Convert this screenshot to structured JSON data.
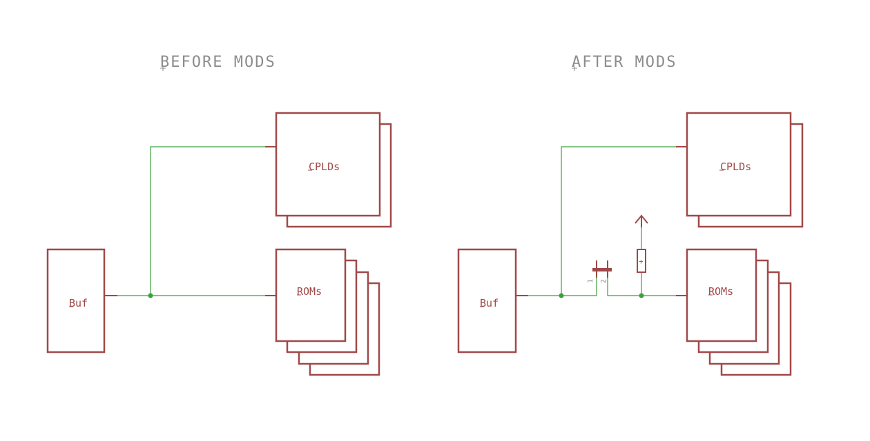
{
  "diagram": {
    "before": {
      "title": "BEFORE MODS",
      "buffer_label": "Buf",
      "cpld_label": "CPLDs",
      "rom_label": "ROMs"
    },
    "after": {
      "title": "AFTER MODS",
      "buffer_label": "Buf",
      "cpld_label": "CPLDs",
      "rom_label": "ROMs",
      "jumper_pin1": "1",
      "jumper_pin2": "2",
      "resistor_mark": "+"
    }
  },
  "colors": {
    "symbol": "#a04848",
    "wire": "#3ba03b",
    "title_text": "#8c8c8c",
    "background": "#ffffff"
  }
}
